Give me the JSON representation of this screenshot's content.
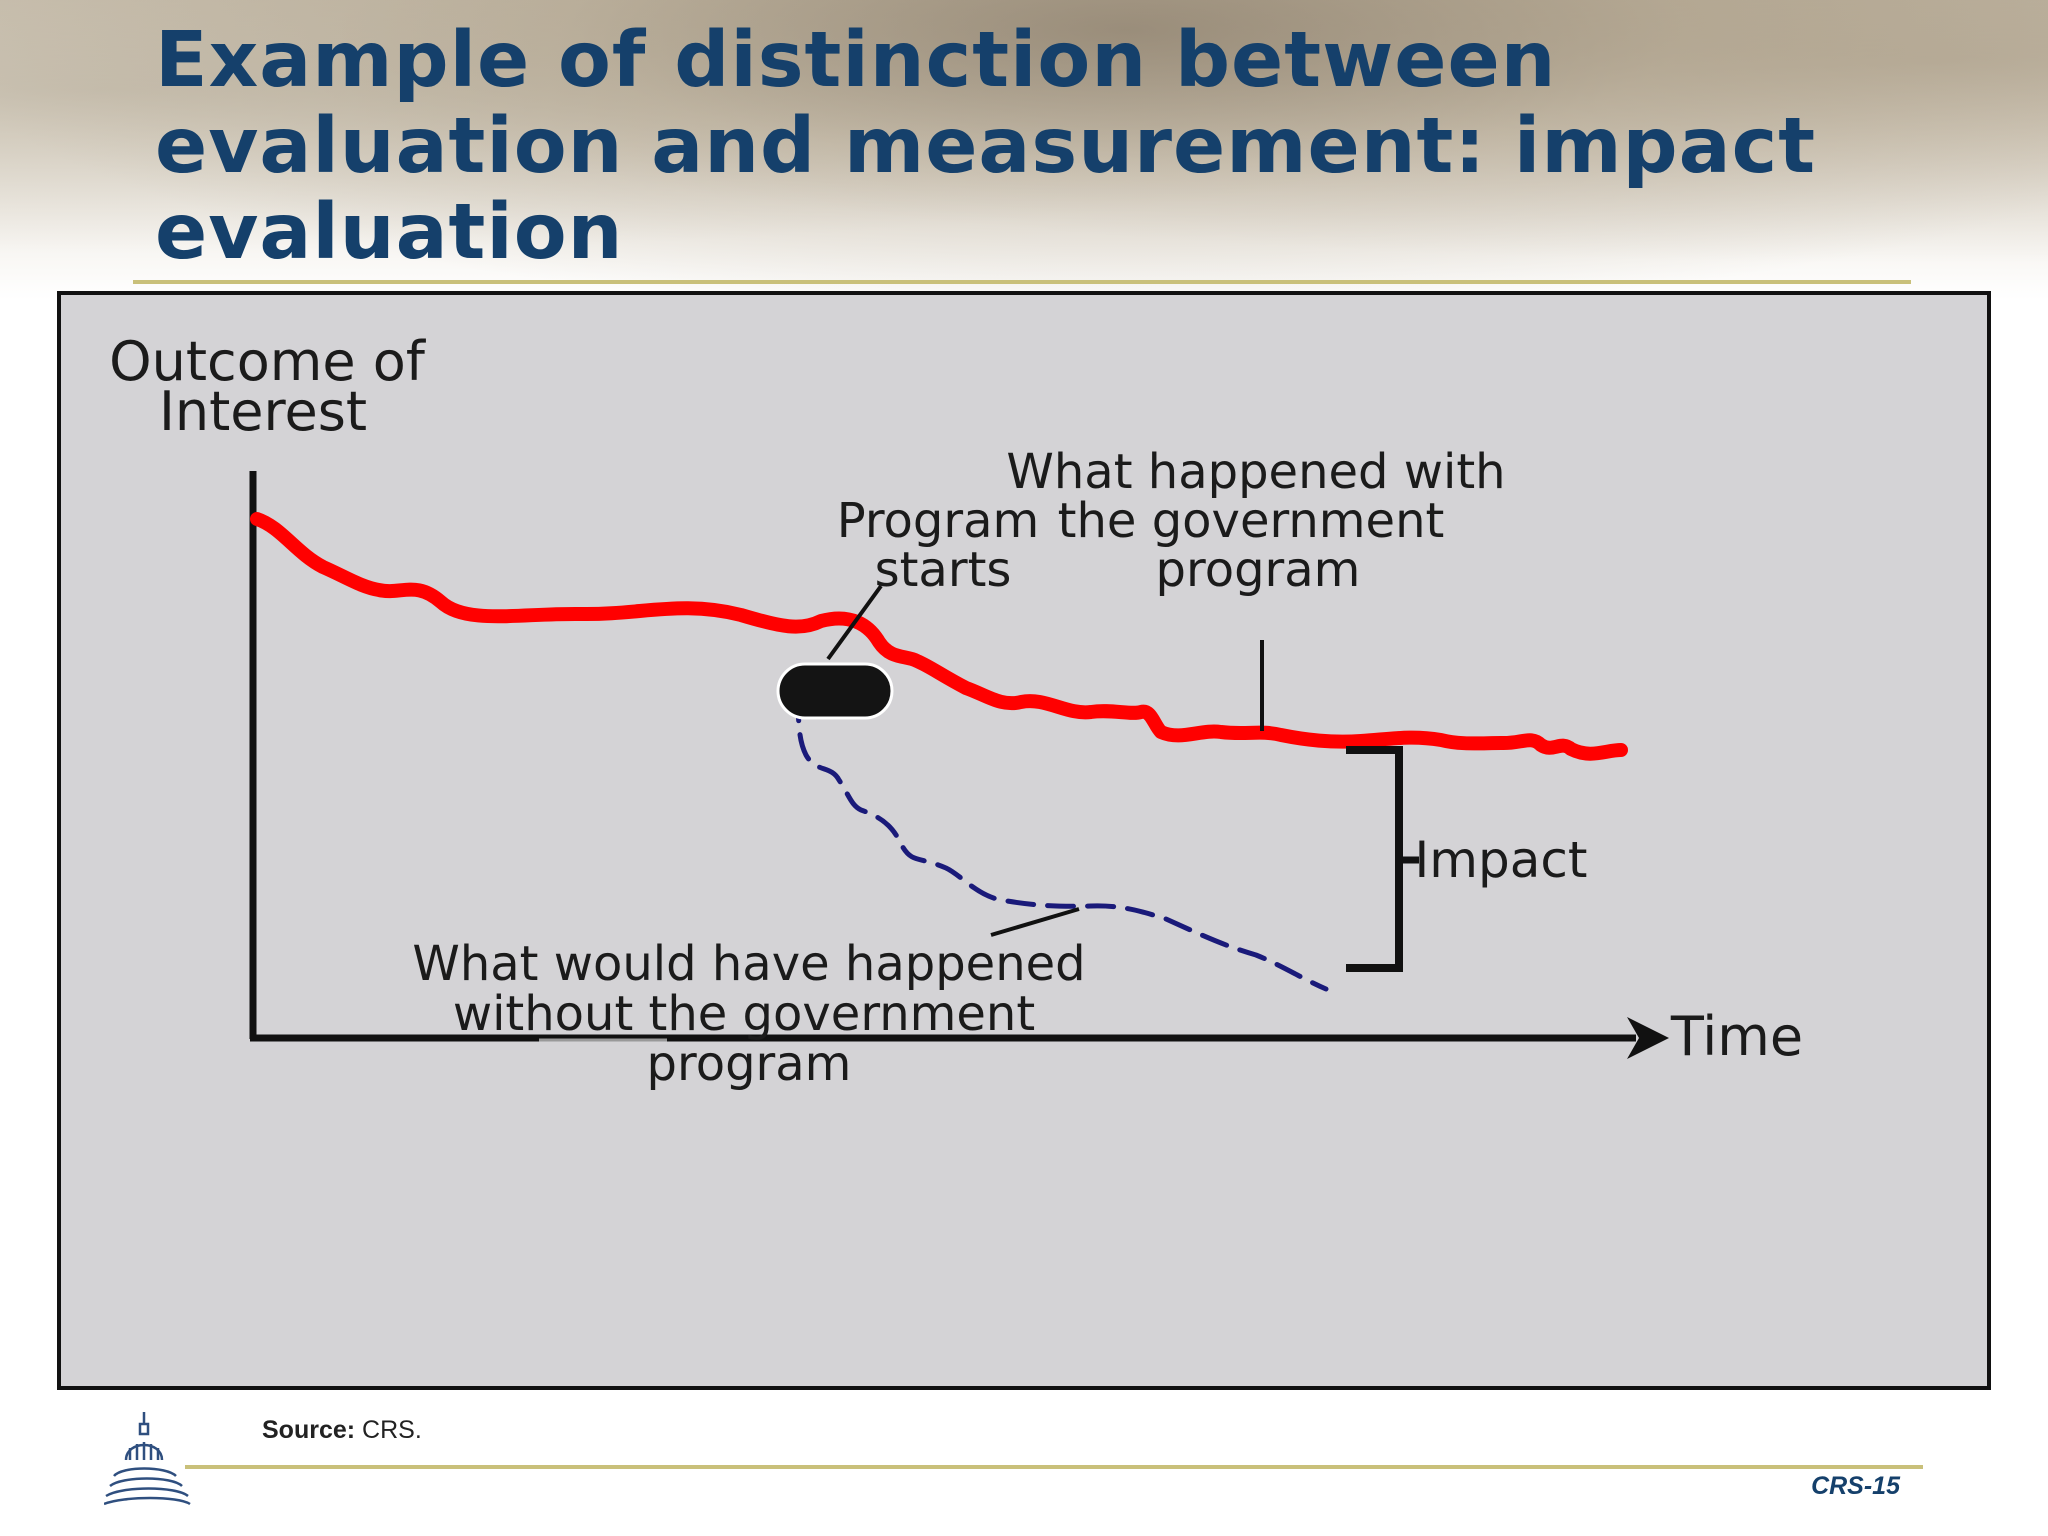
{
  "slide": {
    "title": "Example of distinction between evaluation and measurement: impact evaluation",
    "source_label": "Source:",
    "source_value": "CRS.",
    "page_number": "CRS-15"
  },
  "diagram": {
    "y_axis_label_line1": "Outcome of",
    "y_axis_label_line2": "Interest",
    "x_axis_label": "Time",
    "program_start_line1": "Program",
    "program_start_line2": "starts",
    "with_program_line1": "What happened with",
    "with_program_line2": "the government",
    "with_program_line3": "program",
    "without_program_line1": "What would have happened",
    "without_program_line2": "without the government",
    "without_program_line3": "program",
    "impact_label": "Impact"
  },
  "colors": {
    "title": "#15406b",
    "actual_outcome_line": "#ff0000",
    "counterfactual_line": "#1a1a7a",
    "figure_background": "#d4d3d6",
    "rule": "#c9c07a"
  },
  "icons": [
    "capitol-dome-logo"
  ]
}
